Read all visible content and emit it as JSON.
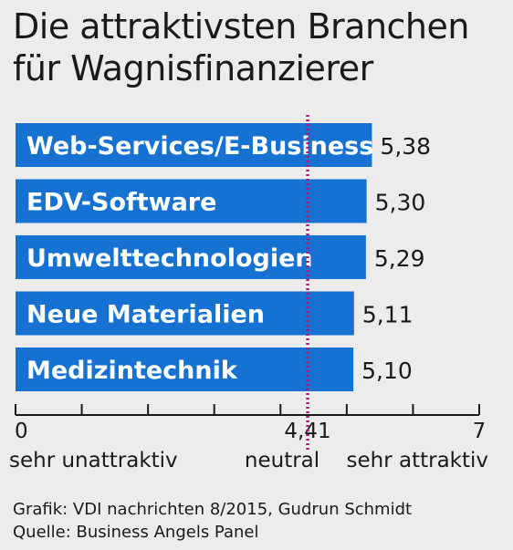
{
  "title_lines": [
    "Die attraktivsten Branchen",
    "für Wagnisfinanzierer"
  ],
  "colors": {
    "bar": "#1572d3",
    "bar_text": "#ffffff",
    "neutral_line": "#b0177a",
    "background": "#ececec"
  },
  "chart_data": {
    "type": "bar",
    "orientation": "horizontal",
    "categories": [
      "Web-Services/E-Business",
      "EDV-Software",
      "Umwelttechnologien",
      "Neue Materialien",
      "Medizintechnik"
    ],
    "values": [
      5.38,
      5.3,
      5.29,
      5.11,
      5.1
    ],
    "value_labels": [
      "5,38",
      "5,30",
      "5,29",
      "5,11",
      "5,10"
    ],
    "xlim": [
      0,
      7
    ],
    "tick_labels": [
      {
        "value": 0,
        "text": "0"
      },
      {
        "value": 4.41,
        "text": "4,41"
      },
      {
        "value": 7,
        "text": "7"
      }
    ],
    "axis_captions": [
      {
        "value": 0,
        "text": "sehr unattraktiv"
      },
      {
        "value": 4.41,
        "text": "neutral"
      },
      {
        "value": 7,
        "text": "sehr attraktiv"
      }
    ],
    "reference_line": {
      "value": 4.41,
      "style": "dotted"
    },
    "grid": false
  },
  "footer": {
    "credit": "Grafik: VDI nachrichten 8/2015, Gudrun Schmidt",
    "source": "Quelle: Business Angels Panel"
  }
}
